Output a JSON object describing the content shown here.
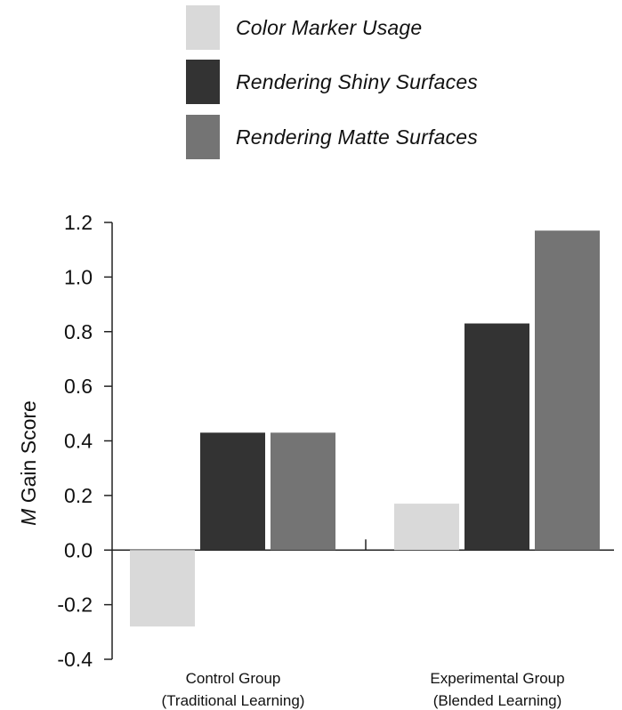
{
  "chart_data": {
    "type": "bar",
    "title": "",
    "xlabel": "",
    "ylabel": "M Gain Score",
    "ylabel_parts": {
      "italic": "M",
      "rest": " Gain Score"
    },
    "ylim": [
      -0.4,
      1.2
    ],
    "ytick_labels": [
      "-0.4",
      "-0.2",
      "0.0",
      "0.2",
      "0.4",
      "0.6",
      "0.8",
      "1.0",
      "1.2"
    ],
    "categories": [
      "Control Group (Traditional Learning)",
      "Experimental Group (Blended Learning)"
    ],
    "category_label_lines": [
      [
        "Control Group",
        "(Traditional Learning)"
      ],
      [
        "Experimental Group",
        "(Blended Learning)"
      ]
    ],
    "series": [
      {
        "name": "Color Marker Usage",
        "color": "#d9d9d9",
        "values": [
          -0.28,
          0.17
        ]
      },
      {
        "name": "Rendering Shiny Surfaces",
        "color": "#333333",
        "values": [
          0.43,
          0.83
        ]
      },
      {
        "name": "Rendering Matte Surfaces",
        "color": "#747474",
        "values": [
          0.43,
          1.17
        ]
      }
    ],
    "legend_position": "top",
    "grid": false
  }
}
